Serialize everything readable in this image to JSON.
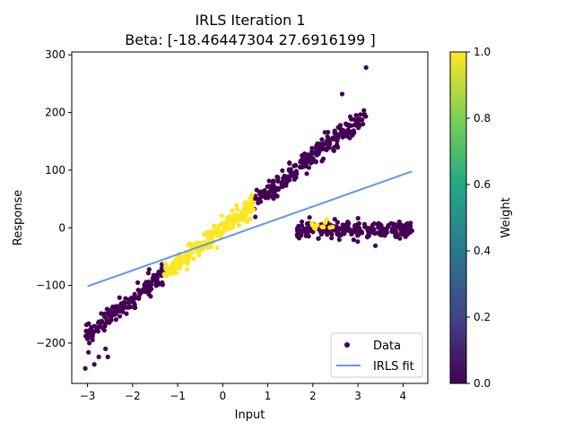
{
  "chart_data": {
    "type": "scatter",
    "title_line1": "IRLS Iteration 1",
    "title_line2": "Beta: [-18.46447304  27.6916199 ]",
    "xlabel": "Input",
    "ylabel": "Response",
    "xlim": [
      -3.35,
      4.55
    ],
    "ylim": [
      -270,
      305
    ],
    "xticks": [
      -3,
      -2,
      -1,
      0,
      1,
      2,
      3,
      4
    ],
    "yticks": [
      -200,
      -100,
      0,
      100,
      200,
      300
    ],
    "grid": false,
    "legend": {
      "placement": "lower-right",
      "entries": [
        {
          "label": "Data",
          "marker": "circle",
          "color": "#440154"
        },
        {
          "label": "IRLS fit",
          "marker": "line",
          "color": "#6495ed"
        }
      ]
    },
    "colorbar": {
      "label": "Weight",
      "colormap": "viridis",
      "range": [
        0.0,
        1.0
      ],
      "ticks": [
        "0.0",
        "0.2",
        "0.4",
        "0.6",
        "0.8",
        "1.0"
      ],
      "colors": [
        "#440154",
        "#414487",
        "#2a788e",
        "#22a884",
        "#7ad151",
        "#fde725"
      ]
    },
    "fit_line": {
      "name": "IRLS fit",
      "color": "#6495ed",
      "intercept": -18.46447304,
      "slope": 27.6916199,
      "x_range": [
        -3.0,
        4.2
      ]
    },
    "series": [
      {
        "name": "Data",
        "point_colors": {
          "low_weight": "#440154",
          "high_weight": "#fde725"
        },
        "clusters": [
          {
            "label": "linear trend, low weight",
            "x_range": [
              -3.05,
              3.2
            ],
            "slope": 62,
            "intercept": 0,
            "noise": 9,
            "count": 420,
            "weight": 0.0,
            "exclude_x": [
              -1.3,
              0.7
            ]
          },
          {
            "label": "linear trend, high weight",
            "x_range": [
              -1.3,
              0.7
            ],
            "slope": 62,
            "intercept": 0,
            "noise": 8,
            "count": 230,
            "weight": 1.0
          },
          {
            "label": "outlier cluster, low weight",
            "x_range": [
              1.65,
              4.2
            ],
            "slope": 0,
            "intercept": -3,
            "noise": 7,
            "count": 260,
            "weight": 0.0
          },
          {
            "label": "outlier cluster, high weight",
            "x_range": [
              1.95,
              2.5
            ],
            "slope": 0,
            "intercept": 3,
            "noise": 5,
            "count": 14,
            "weight": 1.0
          }
        ],
        "points": [
          {
            "x": -3.05,
            "y": -244,
            "weight": 0.0
          },
          {
            "x": -2.85,
            "y": -237,
            "weight": 0.0
          },
          {
            "x": -2.75,
            "y": -224,
            "weight": 0.0
          },
          {
            "x": -2.6,
            "y": -210,
            "weight": 0.0
          },
          {
            "x": -2.55,
            "y": -224,
            "weight": 0.0
          },
          {
            "x": 3.18,
            "y": 278,
            "weight": 0.0
          },
          {
            "x": 2.65,
            "y": 232,
            "weight": 0.0
          },
          {
            "x": 4.2,
            "y": -5,
            "weight": 0.0
          },
          {
            "x": 1.65,
            "y": -12,
            "weight": 0.0
          },
          {
            "x": 1.85,
            "y": -14,
            "weight": 0.0
          }
        ]
      }
    ]
  }
}
